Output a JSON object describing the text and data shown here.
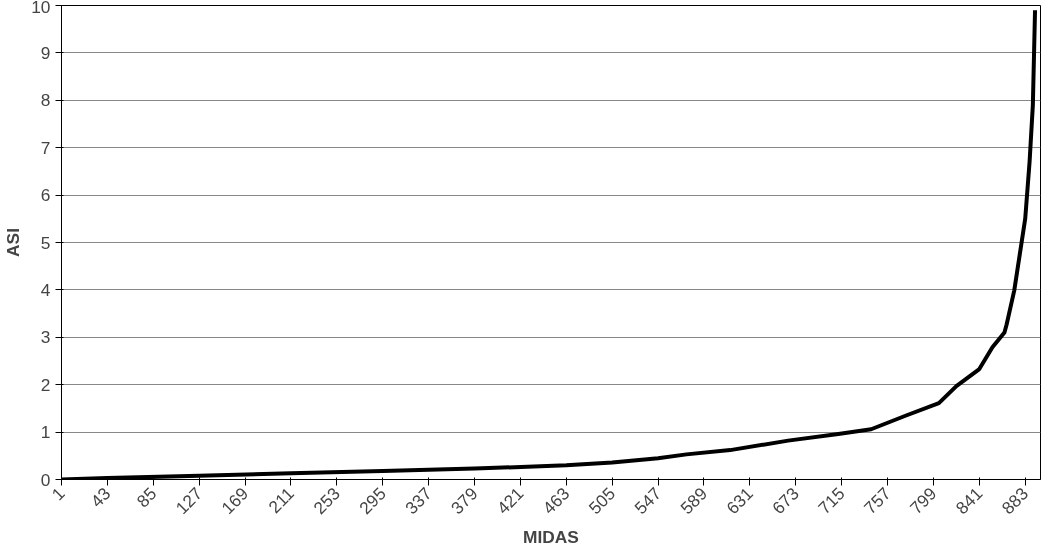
{
  "chart_data": {
    "type": "line",
    "xlabel": "MIDAS",
    "ylabel": "ASI",
    "xlim": [
      1,
      897
    ],
    "ylim": [
      0,
      10
    ],
    "xticks": [
      1,
      43,
      85,
      127,
      169,
      211,
      253,
      295,
      337,
      379,
      421,
      463,
      505,
      547,
      589,
      631,
      673,
      715,
      757,
      799,
      841,
      883
    ],
    "yticks": [
      0,
      1,
      2,
      3,
      4,
      5,
      6,
      7,
      8,
      9,
      10
    ],
    "grid": "y",
    "marker": "none",
    "line_style": "solid",
    "series": [
      {
        "color": "#000000",
        "x": [
          1,
          43,
          127,
          211,
          295,
          379,
          463,
          505,
          547,
          573,
          613,
          666,
          712,
          742,
          774,
          804,
          820,
          841,
          853,
          864,
          866,
          873,
          883,
          887,
          890,
          892
        ],
        "values": [
          0.0,
          0.03,
          0.08,
          0.13,
          0.18,
          0.23,
          0.3,
          0.36,
          0.45,
          0.53,
          0.62,
          0.82,
          0.96,
          1.06,
          1.35,
          1.61,
          1.97,
          2.33,
          2.79,
          3.1,
          3.27,
          3.99,
          5.5,
          6.7,
          7.9,
          9.9
        ]
      }
    ]
  }
}
